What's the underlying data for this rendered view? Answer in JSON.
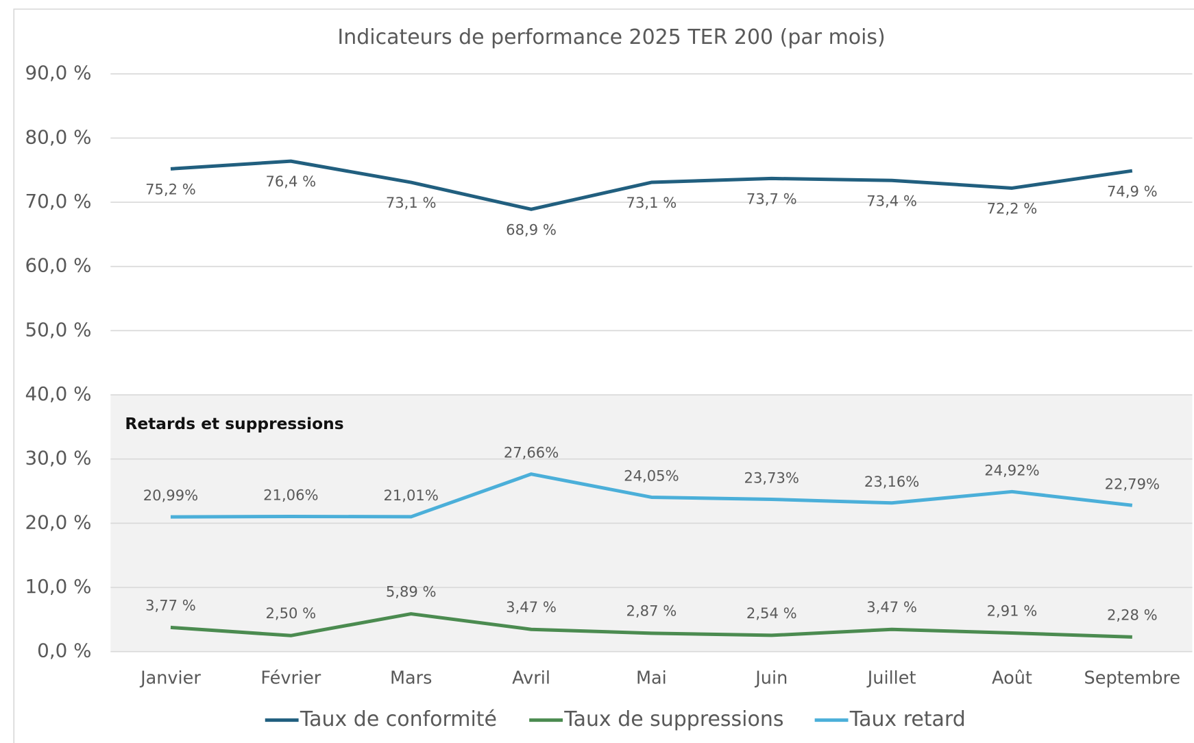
{
  "chart_data": {
    "type": "line",
    "title": "Indicateurs de performance 2025 TER 200 (par mois)",
    "annotation": "Retards et suppressions",
    "categories": [
      "Janvier",
      "Février",
      "Mars",
      "Avril",
      "Mai",
      "Juin",
      "Juillet",
      "Août",
      "Septembre"
    ],
    "series": [
      {
        "name": "Taux de conformité",
        "color": "#215f7f",
        "values": [
          75.2,
          76.4,
          73.1,
          68.9,
          73.1,
          73.7,
          73.4,
          72.2,
          74.9
        ],
        "value_labels": [
          "75,2 %",
          "76,4 %",
          "73,1 %",
          "68,9 %",
          "73,1 %",
          "73,7 %",
          "73,4 %",
          "72,2 %",
          "74,9 %"
        ]
      },
      {
        "name": "Taux de suppressions",
        "color": "#4b8b50",
        "values": [
          3.77,
          2.5,
          5.89,
          3.47,
          2.87,
          2.54,
          3.47,
          2.91,
          2.28
        ],
        "value_labels": [
          "3,77 %",
          "2,50 %",
          "5,89 %",
          "3,47 %",
          "2,87 %",
          "2,54 %",
          "3,47 %",
          "2,91 %",
          "2,28 %"
        ]
      },
      {
        "name": "Taux retard",
        "color": "#4bafd9",
        "values": [
          20.99,
          21.06,
          21.01,
          27.66,
          24.05,
          23.73,
          23.16,
          24.92,
          22.79
        ],
        "value_labels": [
          "20,99%",
          "21,06%",
          "21,01%",
          "27,66%",
          "24,05%",
          "23,73%",
          "23,16%",
          "24,92%",
          "22,79%"
        ]
      }
    ],
    "ylim": [
      0,
      90
    ],
    "yticks": [
      {
        "value": 0,
        "label": "0,0 %"
      },
      {
        "value": 10,
        "label": "10,0 %"
      },
      {
        "value": 20,
        "label": "20,0 %"
      },
      {
        "value": 30,
        "label": "30,0 %"
      },
      {
        "value": 40,
        "label": "40,0 %"
      },
      {
        "value": 50,
        "label": "50,0 %"
      },
      {
        "value": 60,
        "label": "60,0 %"
      },
      {
        "value": 70,
        "label": "70,0 %"
      },
      {
        "value": 80,
        "label": "80,0 %"
      },
      {
        "value": 90,
        "label": "90,0 %"
      }
    ],
    "shaded_band": [
      0,
      40
    ],
    "grid": true,
    "legend": "bottom"
  }
}
